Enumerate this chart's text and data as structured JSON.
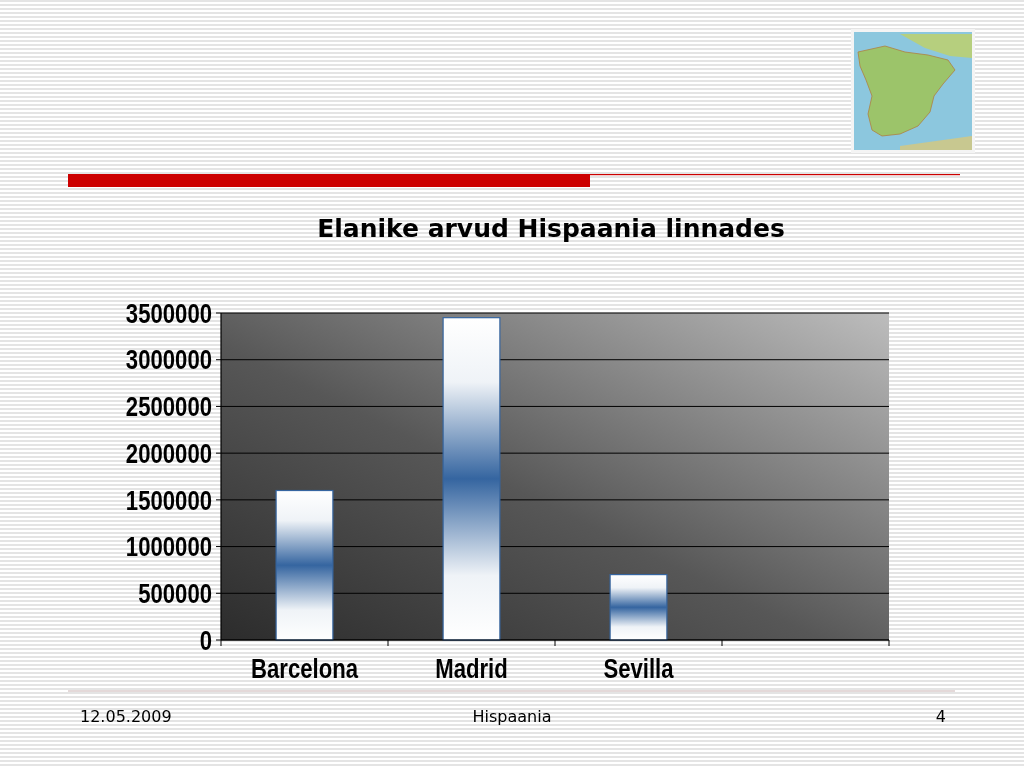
{
  "chart_data": {
    "type": "bar",
    "title": "Elanike arvud Hispaania linnades",
    "categories": [
      "Barcelona",
      "Madrid",
      "Sevilla",
      null
    ],
    "values": [
      1600000,
      3450000,
      700000,
      null
    ],
    "color": "#3565a0",
    "ylim": [
      0,
      3500000
    ],
    "yticks": [
      0,
      500000,
      1000000,
      1500000,
      2000000,
      2500000,
      3000000,
      3500000
    ],
    "grid": "y",
    "annotations": [
      "12.05.2009",
      "Hispaania",
      "4"
    ]
  }
}
